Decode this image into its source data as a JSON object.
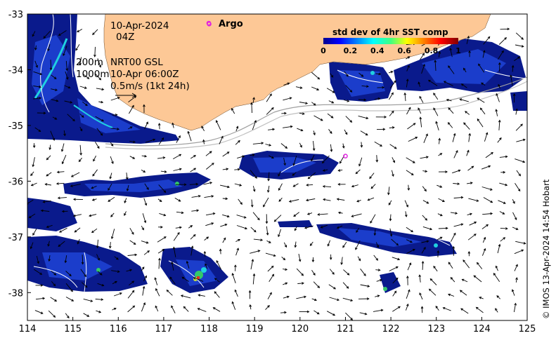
{
  "annotations": {
    "date": "10-Apr-2024",
    "time": "04Z",
    "contour_200": "200m",
    "contour_1000": "1000m",
    "current_source": "NRT00 GSL",
    "current_time": "10-Apr 06:00Z",
    "scale_label": "0.5m/s (1kt 24h)"
  },
  "legend": {
    "argo_label": "Argo",
    "colorbar_title": "std dev of 4hr SST comp",
    "colorbar_ticks": [
      "0",
      "0.2",
      "0.4",
      "0.6",
      "0.8",
      "1"
    ]
  },
  "axes": {
    "x_ticks": [
      "114",
      "115",
      "116",
      "117",
      "118",
      "119",
      "120",
      "121",
      "122",
      "123",
      "124",
      "125"
    ],
    "y_ticks": [
      "-33",
      "-34",
      "-35",
      "-36",
      "-37",
      "-38"
    ],
    "lon_range": [
      114,
      125
    ],
    "lat_range": [
      -38.5,
      -33
    ]
  },
  "argo_floats": [
    {
      "lon": 118.0,
      "lat": -33.18
    },
    {
      "lon": 121.0,
      "lat": -35.55
    }
  ],
  "copyright": "© IMOS 13-Apr-2024 14:54 Hobart",
  "colors": {
    "land": "#fdc896",
    "data_dark": "#0a1a8c",
    "data_mid": "#1f44d6",
    "cyan": "#20d0e0",
    "green": "#34c86a",
    "argo": "#e020e0"
  }
}
